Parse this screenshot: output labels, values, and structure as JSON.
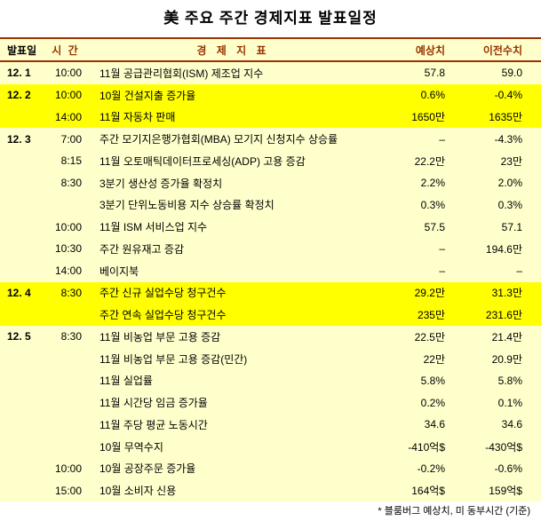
{
  "title": "美 주요 주간 경제지표 발표일정",
  "footer_note": "* 블룸버그 예상치, 미 동부시간 (기준)",
  "colors": {
    "header_text": "#993300",
    "rule_line": "#993300",
    "row_background": "#FFFFCC",
    "highlight_background": "#FFFF00"
  },
  "table": {
    "headers": {
      "date": "발표일",
      "time": "시 간",
      "indicator": "경 제 지 표",
      "expected": "예상치",
      "previous": "이전수치"
    },
    "rows": [
      {
        "date": "12. 1",
        "time": "10:00",
        "indicator": "11월 공급관리협회(ISM) 제조업 지수",
        "expected": "57.8",
        "previous": "59.0",
        "highlight": false
      },
      {
        "date": "12. 2",
        "time": "10:00",
        "indicator": "10월 건설지출 증가율",
        "expected": "0.6%",
        "previous": "-0.4%",
        "highlight": true
      },
      {
        "date": "",
        "time": "14:00",
        "indicator": "11월 자동차 판매",
        "expected": "1650만",
        "previous": "1635만",
        "highlight": true
      },
      {
        "date": "12. 3",
        "time": "7:00",
        "indicator": "주간 모기지은행가협회(MBA) 모기지 신청지수 상승률",
        "expected": "–",
        "previous": "-4.3%",
        "highlight": false
      },
      {
        "date": "",
        "time": "8:15",
        "indicator": "11월 오토매틱데이터프로세싱(ADP) 고용 증감",
        "expected": "22.2만",
        "previous": "23만",
        "highlight": false
      },
      {
        "date": "",
        "time": "8:30",
        "indicator": "3분기 생산성 증가율 확정치",
        "expected": "2.2%",
        "previous": "2.0%",
        "highlight": false
      },
      {
        "date": "",
        "time": "",
        "indicator": "3분기 단위노동비용 지수 상승률 확정치",
        "expected": "0.3%",
        "previous": "0.3%",
        "highlight": false
      },
      {
        "date": "",
        "time": "10:00",
        "indicator": "11월 ISM 서비스업 지수",
        "expected": "57.5",
        "previous": "57.1",
        "highlight": false
      },
      {
        "date": "",
        "time": "10:30",
        "indicator": "주간 원유재고 증감",
        "expected": "–",
        "previous": "194.6만",
        "highlight": false
      },
      {
        "date": "",
        "time": "14:00",
        "indicator": "베이지북",
        "expected": "–",
        "previous": "–",
        "highlight": false
      },
      {
        "date": "12. 4",
        "time": "8:30",
        "indicator": "주간 신규 실업수당 청구건수",
        "expected": "29.2만",
        "previous": "31.3만",
        "highlight": true
      },
      {
        "date": "",
        "time": "",
        "indicator": "주간 연속 실업수당 청구건수",
        "expected": "235만",
        "previous": "231.6만",
        "highlight": true
      },
      {
        "date": "12. 5",
        "time": "8:30",
        "indicator": "11월 비농업 부문 고용 증감",
        "expected": "22.5만",
        "previous": "21.4만",
        "highlight": false
      },
      {
        "date": "",
        "time": "",
        "indicator": "11월 비농업 부문 고용 증감(민간)",
        "expected": "22만",
        "previous": "20.9만",
        "highlight": false
      },
      {
        "date": "",
        "time": "",
        "indicator": "11월 실업률",
        "expected": "5.8%",
        "previous": "5.8%",
        "highlight": false
      },
      {
        "date": "",
        "time": "",
        "indicator": "11월 시간당 임금 증가율",
        "expected": "0.2%",
        "previous": "0.1%",
        "highlight": false
      },
      {
        "date": "",
        "time": "",
        "indicator": "11월 주당 평균 노동시간",
        "expected": "34.6",
        "previous": "34.6",
        "highlight": false
      },
      {
        "date": "",
        "time": "",
        "indicator": "10월 무역수지",
        "expected": "-410억$",
        "previous": "-430억$",
        "highlight": false
      },
      {
        "date": "",
        "time": "10:00",
        "indicator": "10월 공장주문 증가율",
        "expected": "-0.2%",
        "previous": "-0.6%",
        "highlight": false
      },
      {
        "date": "",
        "time": "15:00",
        "indicator": "10월 소비자 신용",
        "expected": "164억$",
        "previous": "159억$",
        "highlight": false
      }
    ]
  }
}
